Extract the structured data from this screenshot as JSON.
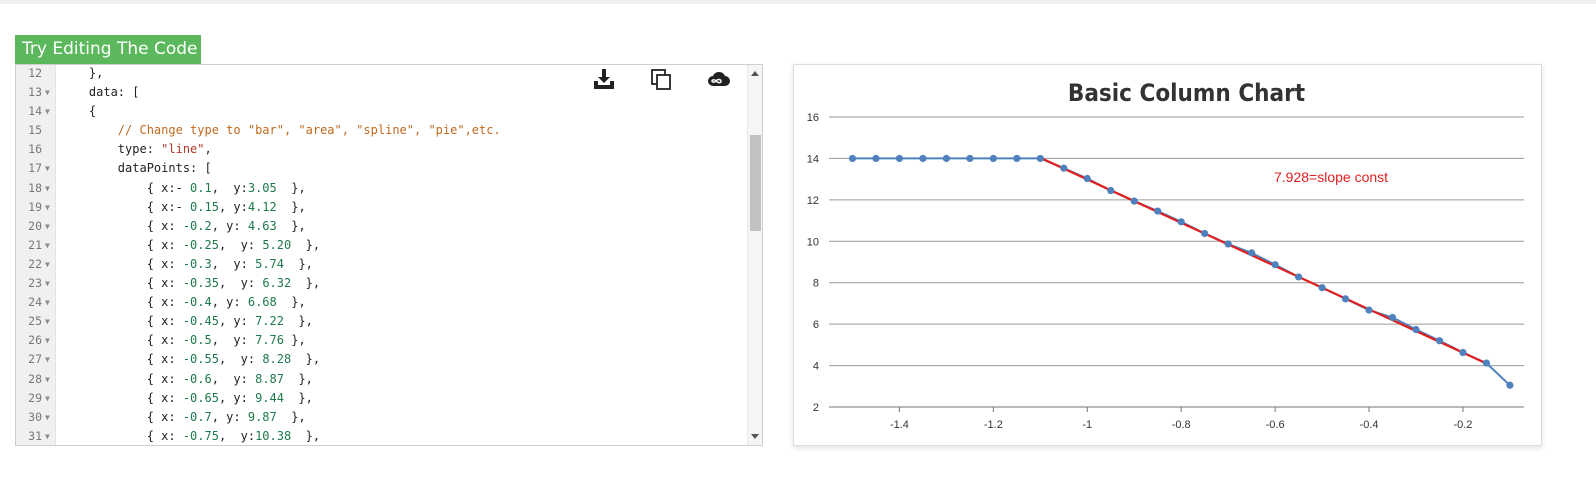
{
  "header": {
    "try_label": "Try Editing The Code"
  },
  "editor": {
    "lines": [
      {
        "n": "12",
        "fold": false,
        "parts": [
          {
            "t": "    },"
          }
        ]
      },
      {
        "n": "13",
        "fold": true,
        "parts": [
          {
            "t": "    data: ["
          }
        ]
      },
      {
        "n": "14",
        "fold": true,
        "parts": [
          {
            "t": "    {"
          }
        ]
      },
      {
        "n": "15",
        "fold": false,
        "parts": [
          {
            "t": "        "
          },
          {
            "t": "// Change type to \"bar\", \"area\", \"spline\", \"pie\",etc.",
            "c": "cmt"
          }
        ]
      },
      {
        "n": "16",
        "fold": false,
        "parts": [
          {
            "t": "        type: "
          },
          {
            "t": "\"line\"",
            "c": "str"
          },
          {
            "t": ","
          }
        ]
      },
      {
        "n": "17",
        "fold": true,
        "parts": [
          {
            "t": "        dataPoints: ["
          }
        ]
      },
      {
        "n": "18",
        "fold": true,
        "parts": [
          {
            "t": "            { x:- "
          },
          {
            "t": "0.1",
            "c": "num"
          },
          {
            "t": ",  y:"
          },
          {
            "t": "3.05",
            "c": "num"
          },
          {
            "t": "  },"
          }
        ]
      },
      {
        "n": "19",
        "fold": true,
        "parts": [
          {
            "t": "            { x:- "
          },
          {
            "t": "0.15",
            "c": "num"
          },
          {
            "t": ", y:"
          },
          {
            "t": "4.12",
            "c": "num"
          },
          {
            "t": "  },"
          }
        ]
      },
      {
        "n": "20",
        "fold": true,
        "parts": [
          {
            "t": "            { x: "
          },
          {
            "t": "-0.2",
            "c": "num"
          },
          {
            "t": ", y: "
          },
          {
            "t": "4.63",
            "c": "num"
          },
          {
            "t": "  },"
          }
        ]
      },
      {
        "n": "21",
        "fold": true,
        "parts": [
          {
            "t": "            { x: "
          },
          {
            "t": "-0.25",
            "c": "num"
          },
          {
            "t": ",  y: "
          },
          {
            "t": "5.20",
            "c": "num"
          },
          {
            "t": "  },"
          }
        ]
      },
      {
        "n": "22",
        "fold": true,
        "parts": [
          {
            "t": "            { x: "
          },
          {
            "t": "-0.3",
            "c": "num"
          },
          {
            "t": ",  y: "
          },
          {
            "t": "5.74",
            "c": "num"
          },
          {
            "t": "  },"
          }
        ]
      },
      {
        "n": "23",
        "fold": true,
        "parts": [
          {
            "t": "            { x: "
          },
          {
            "t": "-0.35",
            "c": "num"
          },
          {
            "t": ",  y: "
          },
          {
            "t": "6.32",
            "c": "num"
          },
          {
            "t": "  },"
          }
        ]
      },
      {
        "n": "24",
        "fold": true,
        "parts": [
          {
            "t": "            { x: "
          },
          {
            "t": "-0.4",
            "c": "num"
          },
          {
            "t": ", y: "
          },
          {
            "t": "6.68",
            "c": "num"
          },
          {
            "t": "  },"
          }
        ]
      },
      {
        "n": "25",
        "fold": true,
        "parts": [
          {
            "t": "            { x: "
          },
          {
            "t": "-0.45",
            "c": "num"
          },
          {
            "t": ", y: "
          },
          {
            "t": "7.22",
            "c": "num"
          },
          {
            "t": "  },"
          }
        ]
      },
      {
        "n": "26",
        "fold": true,
        "parts": [
          {
            "t": "            { x: "
          },
          {
            "t": "-0.5",
            "c": "num"
          },
          {
            "t": ",  y: "
          },
          {
            "t": "7.76",
            "c": "num"
          },
          {
            "t": " },"
          }
        ]
      },
      {
        "n": "27",
        "fold": true,
        "parts": [
          {
            "t": "            { x: "
          },
          {
            "t": "-0.55",
            "c": "num"
          },
          {
            "t": ",  y: "
          },
          {
            "t": "8.28",
            "c": "num"
          },
          {
            "t": "  },"
          }
        ]
      },
      {
        "n": "28",
        "fold": true,
        "parts": [
          {
            "t": "            { x: "
          },
          {
            "t": "-0.6",
            "c": "num"
          },
          {
            "t": ",  y: "
          },
          {
            "t": "8.87",
            "c": "num"
          },
          {
            "t": "  },"
          }
        ]
      },
      {
        "n": "29",
        "fold": true,
        "parts": [
          {
            "t": "            { x: "
          },
          {
            "t": "-0.65",
            "c": "num"
          },
          {
            "t": ", y: "
          },
          {
            "t": "9.44",
            "c": "num"
          },
          {
            "t": "  },"
          }
        ]
      },
      {
        "n": "30",
        "fold": true,
        "parts": [
          {
            "t": "            { x: "
          },
          {
            "t": "-0.7",
            "c": "num"
          },
          {
            "t": ", y: "
          },
          {
            "t": "9.87",
            "c": "num"
          },
          {
            "t": "  },"
          }
        ]
      },
      {
        "n": "31",
        "fold": true,
        "parts": [
          {
            "t": "            { x: "
          },
          {
            "t": "-0.75",
            "c": "num"
          },
          {
            "t": ",  y:"
          },
          {
            "t": "10.38",
            "c": "num"
          },
          {
            "t": "  },"
          }
        ]
      }
    ],
    "toolbar_icons": [
      "download-icon",
      "copy-icon",
      "cloud-icon"
    ]
  },
  "colors": {
    "try_bg": "#5cb85c",
    "series_line": "#4f81bc",
    "trend_line": "#e01f1f",
    "annotation": "#e01f1f",
    "title": "#333333"
  },
  "chart_data": {
    "type": "line",
    "title": "Basic Column Chart",
    "annotation": "7.928=slope const",
    "xlim": [
      -1.55,
      -0.07
    ],
    "ylim": [
      2,
      16
    ],
    "x_ticks": [
      -1.4,
      -1.2,
      -1,
      -0.8,
      -0.6,
      -0.4,
      -0.2
    ],
    "y_ticks": [
      2,
      4,
      6,
      8,
      10,
      12,
      14,
      16
    ],
    "grid": "horizontal",
    "series": [
      {
        "points": [
          [
            -1.5,
            14
          ],
          [
            -1.45,
            14
          ],
          [
            -1.4,
            14
          ],
          [
            -1.35,
            14
          ],
          [
            -1.3,
            14
          ],
          [
            -1.25,
            14
          ],
          [
            -1.2,
            14
          ],
          [
            -1.15,
            14
          ],
          [
            -1.1,
            14
          ],
          [
            -1.05,
            13.53
          ],
          [
            -1,
            13.03
          ],
          [
            -0.95,
            12.45
          ],
          [
            -0.9,
            11.94
          ],
          [
            -0.85,
            11.46
          ],
          [
            -0.8,
            10.94
          ],
          [
            -0.75,
            10.38
          ],
          [
            -0.7,
            9.87
          ],
          [
            -0.65,
            9.44
          ],
          [
            -0.6,
            8.87
          ],
          [
            -0.55,
            8.28
          ],
          [
            -0.5,
            7.76
          ],
          [
            -0.45,
            7.22
          ],
          [
            -0.4,
            6.68
          ],
          [
            -0.35,
            6.32
          ],
          [
            -0.3,
            5.74
          ],
          [
            -0.25,
            5.2
          ],
          [
            -0.2,
            4.63
          ],
          [
            -0.15,
            4.12
          ],
          [
            -0.1,
            3.05
          ]
        ]
      }
    ],
    "trend_line": {
      "from": [
        -1.1,
        14.03
      ],
      "to": [
        -0.15,
        4.1
      ]
    }
  }
}
